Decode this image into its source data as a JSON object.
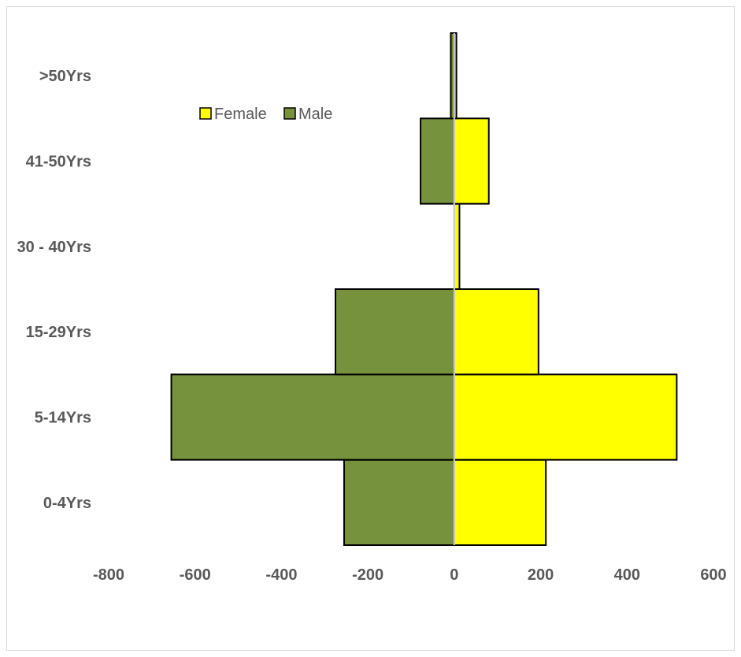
{
  "chart_data": {
    "type": "bar",
    "orientation": "horizontal",
    "categories": [
      "0-4Yrs",
      "5-14Yrs",
      "15-29Yrs",
      "30 - 40Yrs",
      "41-50Yrs",
      ">50Yrs"
    ],
    "series": [
      {
        "name": "Female",
        "color": "#FFFF00",
        "values": [
          212,
          515,
          195,
          12,
          80,
          5
        ]
      },
      {
        "name": "Male",
        "color": "#76923C",
        "values": [
          -255,
          -655,
          -275,
          0,
          -78,
          -8
        ]
      }
    ],
    "xlim": [
      -800,
      600
    ],
    "xticks": [
      "-800",
      "-600",
      "-400",
      "-200",
      "0",
      "200",
      "400",
      "600"
    ],
    "legend": {
      "position": "top-left",
      "entries": [
        "Female",
        "Male"
      ]
    },
    "grid": false,
    "title": "",
    "xlabel": "",
    "ylabel": ""
  }
}
